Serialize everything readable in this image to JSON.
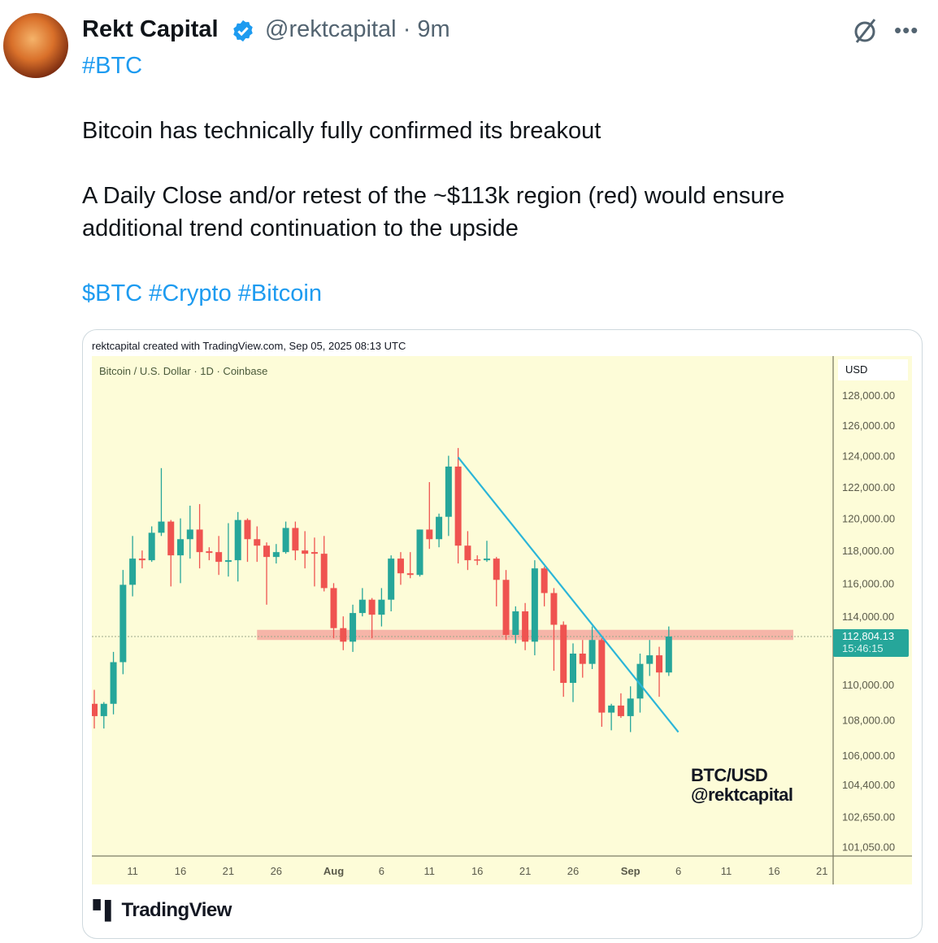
{
  "tweet": {
    "author_name": "Rekt Capital",
    "handle": "@rektcapital",
    "separator": "·",
    "time": "9m",
    "verified": true,
    "hashtag_line": "#BTC",
    "body_line1": "Bitcoin has technically fully confirmed its breakout",
    "body_line2": "A Daily Close and/or retest of the ~$113k region (red) would ensure",
    "body_line3": "additional trend continuation to the upside",
    "tags_line": "$BTC #Crypto #Bitcoin",
    "icons": {
      "verified": "verified-badge-icon",
      "grok": "grok-icon",
      "more": "more-options-icon"
    },
    "accent_color": "#1d9bf0"
  },
  "chart_image": {
    "credit": "rektcapital created with TradingView.com, Sep 05, 2025 08:13 UTC",
    "symbol_line": "Bitcoin / U.S. Dollar · 1D · Coinbase",
    "currency": "USD",
    "watermark_line1": "BTC/USD",
    "watermark_line2": "@rektcapital",
    "footer_logo": "TradingView",
    "last_price_label": "112,804.13",
    "countdown_label": "15:46:15"
  },
  "chart_data": {
    "type": "candlestick",
    "y_scale": "log",
    "ylim": [
      100500,
      129500
    ],
    "y_ticks": [
      "128,000.00",
      "126,000.00",
      "124,000.00",
      "122,000.00",
      "120,000.00",
      "118,000.00",
      "116,000.00",
      "114,000.00",
      "110,000.00",
      "108,000.00",
      "106,000.00",
      "104,400.00",
      "102,650.00",
      "101,050.00"
    ],
    "y_tick_values": [
      128000,
      126000,
      124000,
      122000,
      120000,
      118000,
      116000,
      114000,
      110000,
      108000,
      106000,
      104400,
      102650,
      101050
    ],
    "x_ticks": [
      {
        "label": "11",
        "date": "2025-07-11"
      },
      {
        "label": "16",
        "date": "2025-07-16"
      },
      {
        "label": "21",
        "date": "2025-07-21"
      },
      {
        "label": "26",
        "date": "2025-07-26"
      },
      {
        "label": "Aug",
        "date": "2025-08-01",
        "bold": true
      },
      {
        "label": "6",
        "date": "2025-08-06"
      },
      {
        "label": "11",
        "date": "2025-08-11"
      },
      {
        "label": "16",
        "date": "2025-08-16"
      },
      {
        "label": "21",
        "date": "2025-08-21"
      },
      {
        "label": "26",
        "date": "2025-08-26"
      },
      {
        "label": "Sep",
        "date": "2025-09-01",
        "bold": true
      },
      {
        "label": "6",
        "date": "2025-09-06"
      },
      {
        "label": "11",
        "date": "2025-09-11"
      },
      {
        "label": "16",
        "date": "2025-09-16"
      },
      {
        "label": "21",
        "date": "2025-09-21"
      }
    ],
    "x_range": [
      "2025-07-07",
      "2025-09-24"
    ],
    "candles_start": "2025-07-07",
    "candles_ohlc": [
      [
        108900,
        109700,
        107500,
        108200
      ],
      [
        108200,
        109000,
        107500,
        108900
      ],
      [
        108900,
        111900,
        108300,
        111300
      ],
      [
        111300,
        116800,
        110600,
        115900
      ],
      [
        115900,
        118900,
        115200,
        117500
      ],
      [
        117500,
        118000,
        116900,
        117400
      ],
      [
        117400,
        119500,
        117300,
        119100
      ],
      [
        119100,
        123200,
        118900,
        119800
      ],
      [
        119800,
        119900,
        115800,
        117700
      ],
      [
        117700,
        120000,
        116000,
        118700
      ],
      [
        118700,
        120800,
        117500,
        119300
      ],
      [
        119300,
        120900,
        116900,
        117900
      ],
      [
        117950,
        118200,
        117400,
        117850
      ],
      [
        117900,
        118900,
        116500,
        117300
      ],
      [
        117300,
        119700,
        116400,
        117400
      ],
      [
        117400,
        120400,
        116100,
        119900
      ],
      [
        119900,
        120000,
        117300,
        118700
      ],
      [
        118700,
        119500,
        117300,
        118300
      ],
      [
        118300,
        118500,
        114700,
        117600
      ],
      [
        117600,
        118400,
        117200,
        117900
      ],
      [
        117900,
        119800,
        117800,
        119400
      ],
      [
        119400,
        119800,
        117400,
        118000
      ],
      [
        118000,
        119200,
        116900,
        117800
      ],
      [
        117900,
        118800,
        115800,
        117800
      ],
      [
        117800,
        118900,
        115500,
        115700
      ],
      [
        115700,
        116000,
        112700,
        113300
      ],
      [
        113300,
        114000,
        112000,
        112500
      ],
      [
        112500,
        114700,
        111900,
        114200
      ],
      [
        114200,
        115700,
        114000,
        115000
      ],
      [
        115000,
        115100,
        112700,
        114100
      ],
      [
        114100,
        115700,
        113400,
        115000
      ],
      [
        115000,
        117700,
        114300,
        117500
      ],
      [
        117500,
        117900,
        115900,
        116600
      ],
      [
        116600,
        117900,
        116300,
        116500
      ],
      [
        116500,
        119300,
        116400,
        119300
      ],
      [
        119300,
        122300,
        118100,
        118700
      ],
      [
        118700,
        120300,
        118200,
        120100
      ],
      [
        120100,
        124000,
        118900,
        123300
      ],
      [
        123300,
        124500,
        117200,
        118300
      ],
      [
        118300,
        119200,
        116800,
        117400
      ],
      [
        117450,
        117700,
        117100,
        117400
      ],
      [
        117400,
        118600,
        117300,
        117500
      ],
      [
        117500,
        117600,
        114600,
        116200
      ],
      [
        116200,
        116800,
        112600,
        112900
      ],
      [
        112900,
        114600,
        112400,
        114300
      ],
      [
        114300,
        114800,
        112000,
        112500
      ],
      [
        112500,
        117400,
        111700,
        116900
      ],
      [
        116900,
        117000,
        114600,
        115400
      ],
      [
        115400,
        115700,
        110800,
        113500
      ],
      [
        113500,
        113700,
        109300,
        110100
      ],
      [
        110100,
        112400,
        109000,
        111800
      ],
      [
        111800,
        112600,
        110400,
        111200
      ],
      [
        111200,
        113400,
        110900,
        112600
      ],
      [
        112600,
        112700,
        107600,
        108400
      ],
      [
        108400,
        108900,
        107400,
        108800
      ],
      [
        108800,
        109500,
        108100,
        108200
      ],
      [
        108200,
        109900,
        107300,
        109200
      ],
      [
        109200,
        111800,
        108400,
        111200
      ],
      [
        111200,
        112600,
        110500,
        111700
      ],
      [
        111700,
        112200,
        109300,
        110700
      ],
      [
        110700,
        113400,
        110500,
        112804.13
      ]
    ],
    "trendline": {
      "from": [
        "2025-08-14",
        123900
      ],
      "to": [
        "2025-09-06",
        107300
      ],
      "color": "#2bb5d8"
    },
    "support_zone": {
      "from": "2025-07-24",
      "to": "2025-09-18",
      "low": 112600,
      "high": 113200,
      "color": "#f4a8a0"
    },
    "last_price": 112804.13,
    "colors": {
      "up": "#26a69a",
      "down": "#ef5350",
      "background": "#fdfcd8",
      "price_label": "#26a69a"
    }
  }
}
